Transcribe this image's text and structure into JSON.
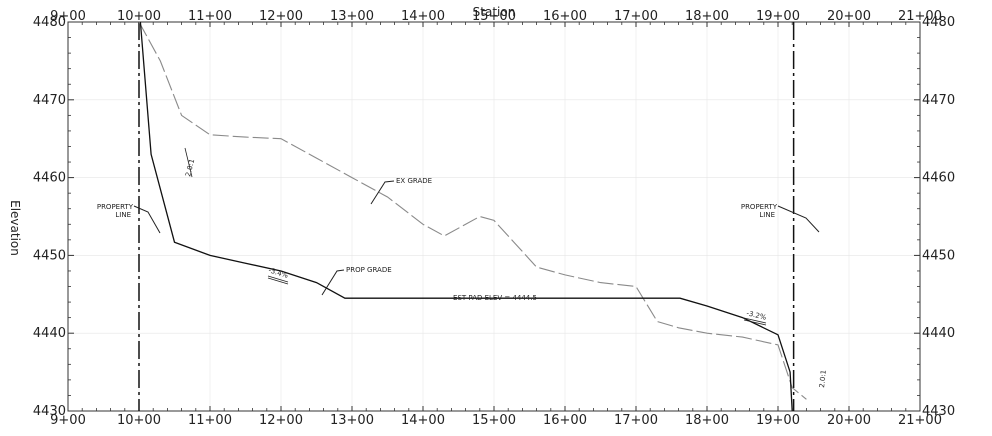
{
  "chart_data": {
    "type": "line",
    "xlabel": "Station",
    "ylabel": "Elevation",
    "xlim": [
      900,
      2100
    ],
    "ylim": [
      4430,
      4480
    ],
    "x_ticks": [
      "9+00",
      "10+00",
      "11+00",
      "12+00",
      "13+00",
      "14+00",
      "15+00",
      "16+00",
      "17+00",
      "18+00",
      "19+00",
      "20+00",
      "21+00"
    ],
    "y_ticks": [
      "4430",
      "4440",
      "4450",
      "4460",
      "4470",
      "4480"
    ],
    "grid": true,
    "series": [
      {
        "key": "existing",
        "x": [
          1000,
          1030,
          1060,
          1100,
          1150,
          1200,
          1250,
          1300,
          1350,
          1400,
          1430,
          1450,
          1480,
          1500,
          1530,
          1560,
          1600,
          1650,
          1700,
          1730,
          1760,
          1800,
          1850,
          1900,
          1920,
          1940
        ],
        "y": [
          4480,
          4475,
          4468,
          4465.5,
          4465.2,
          4465,
          4462.5,
          4460,
          4457.5,
          4454,
          4452.5,
          4453.5,
          4455,
          4454.5,
          4451.5,
          4448.5,
          4447.5,
          4446.5,
          4446,
          4441.5,
          4440.7,
          4440,
          4439.5,
          4438.5,
          4433,
          4431.5
        ]
      },
      {
        "key": "proposed",
        "x": [
          1002,
          1017,
          1050,
          1100,
          1150,
          1200,
          1250,
          1290,
          1400,
          1500,
          1600,
          1700,
          1762,
          1800,
          1850,
          1900,
          1917,
          1920
        ],
        "y": [
          4480,
          4463,
          4451.7,
          4450,
          4449,
          4448,
          4446.5,
          4444.5,
          4444.5,
          4444.5,
          4444.5,
          4444.5,
          4444.5,
          4443.5,
          4442,
          4439.8,
          4435,
          4430
        ]
      }
    ],
    "property_lines": [
      1000,
      1922
    ],
    "annotations": {
      "ex_grade": "EX GRADE",
      "prop_grade": "PROP GRADE",
      "pad_elev": "EST PAD ELEV = 4444.5",
      "property_line_top": "PROPERTY",
      "property_line_bottom": "LINE",
      "slope_left": "2.0:1",
      "slope_right": "2.0:1",
      "grade_left": "-3.4%",
      "grade_right": "-3.2%"
    }
  }
}
